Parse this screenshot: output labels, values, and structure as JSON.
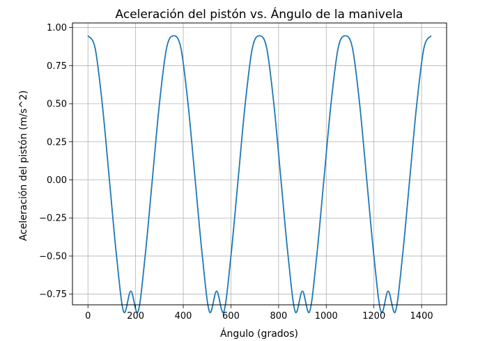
{
  "chart_data": {
    "type": "line",
    "title": "Aceleración del pistón vs. Ángulo de la manivela",
    "xlabel": "Ángulo (grados)",
    "ylabel": "Aceleración del pistón (m/s^2)",
    "xlim": [
      -65,
      1505
    ],
    "ylim": [
      -0.82,
      1.03
    ],
    "xticks": [
      0,
      200,
      400,
      600,
      800,
      1000,
      1200,
      1400
    ],
    "xtick_labels": [
      "0",
      "200",
      "400",
      "600",
      "800",
      "1000",
      "1200",
      "1400"
    ],
    "yticks": [
      1.0,
      0.75,
      0.5,
      0.25,
      0.0,
      -0.25,
      -0.5,
      -0.75
    ],
    "ytick_labels": [
      "1.00",
      "0.75",
      "0.50",
      "0.25",
      "0.00",
      "−0.25",
      "−0.50",
      "−0.75"
    ],
    "grid": true,
    "line_color": "#1f77b4",
    "series": [
      {
        "x": [
          0,
          30,
          60,
          90,
          120,
          150,
          180,
          210,
          240,
          270,
          300,
          330,
          360,
          390,
          420,
          450,
          480,
          510,
          540,
          570,
          600,
          630,
          660,
          690,
          720,
          750,
          780,
          810,
          840,
          870,
          900,
          930,
          960,
          990,
          1020,
          1050,
          1080,
          1110,
          1140,
          1170,
          1200,
          1230,
          1260,
          1290,
          1320,
          1350,
          1380,
          1410,
          1440
        ],
        "y": [
          0.946,
          0.866,
          0.5,
          0.0,
          -0.5,
          -0.866,
          -0.73,
          -0.866,
          -0.5,
          0.0,
          0.5,
          0.866,
          0.946,
          0.866,
          0.5,
          0.0,
          -0.5,
          -0.866,
          -0.73,
          -0.866,
          -0.5,
          0.0,
          0.5,
          0.866,
          0.946,
          0.866,
          0.5,
          0.0,
          -0.5,
          -0.866,
          -0.73,
          -0.866,
          -0.5,
          0.0,
          0.5,
          0.866,
          0.946,
          0.866,
          0.5,
          0.0,
          -0.5,
          -0.866,
          -0.73,
          -0.866,
          -0.5,
          0.0,
          0.5,
          0.866,
          0.946
        ]
      }
    ]
  }
}
